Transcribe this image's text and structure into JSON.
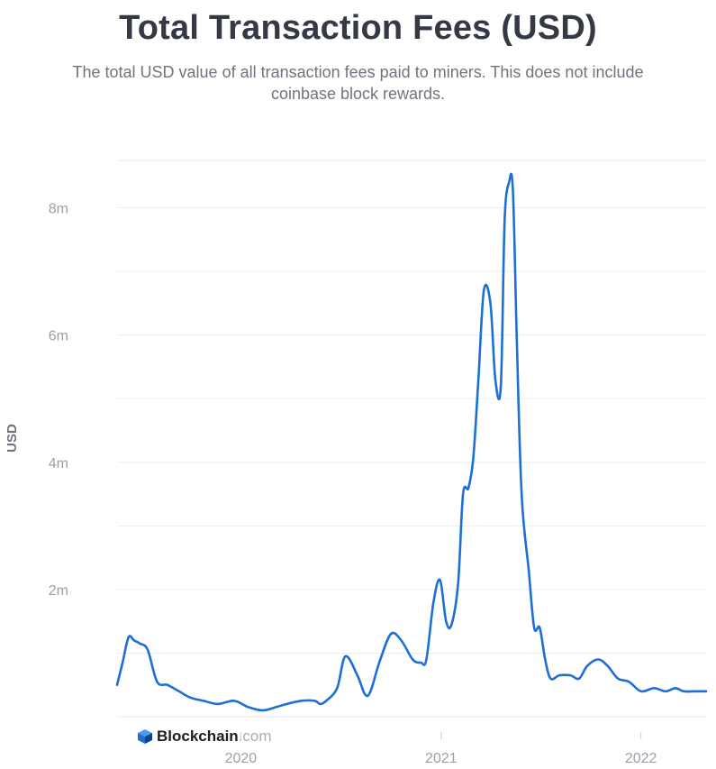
{
  "chart_data": {
    "type": "line",
    "title": "Total Transaction Fees (USD)",
    "subtitle": "The total USD value of all transaction fees paid to miners. This does not include coinbase block rewards.",
    "ylabel": "USD",
    "xlabel": "",
    "y_ticks": [
      {
        "value": 2000000,
        "label": "2m"
      },
      {
        "value": 4000000,
        "label": "4m"
      },
      {
        "value": 6000000,
        "label": "6m"
      },
      {
        "value": 8000000,
        "label": "8m"
      }
    ],
    "x_ticks": [
      {
        "value": "2020-01-01",
        "label": "2020"
      },
      {
        "value": "2021-01-01",
        "label": "2021"
      },
      {
        "value": "2022-01-01",
        "label": "2022"
      }
    ],
    "xlim": [
      "2019-05-20",
      "2022-04-30"
    ],
    "ylim": [
      0,
      9000000
    ],
    "grid": true,
    "legend": "none",
    "line_color": "#1e6fd4",
    "series": [
      {
        "x": [
          "2019-05-20",
          "2019-05-30",
          "2019-06-10",
          "2019-06-20",
          "2019-07-01",
          "2019-07-15",
          "2019-08-01",
          "2019-08-20",
          "2019-09-10",
          "2019-10-01",
          "2019-10-25",
          "2019-11-20",
          "2019-12-20",
          "2020-01-15",
          "2020-02-10",
          "2020-03-05",
          "2020-03-25",
          "2020-04-20",
          "2020-05-15",
          "2020-05-25",
          "2020-06-05",
          "2020-06-25",
          "2020-07-10",
          "2020-08-01",
          "2020-08-15",
          "2020-08-25",
          "2020-09-10",
          "2020-10-01",
          "2020-10-20",
          "2020-11-10",
          "2020-11-25",
          "2020-12-05",
          "2020-12-18",
          "2020-12-30",
          "2021-01-10",
          "2021-01-20",
          "2021-02-01",
          "2021-02-10",
          "2021-02-20",
          "2021-03-01",
          "2021-03-10",
          "2021-03-20",
          "2021-04-01",
          "2021-04-10",
          "2021-04-20",
          "2021-04-27",
          "2021-05-05",
          "2021-05-12",
          "2021-05-19",
          "2021-05-28",
          "2021-06-10",
          "2021-06-20",
          "2021-06-30",
          "2021-07-10",
          "2021-07-20",
          "2021-08-05",
          "2021-08-25",
          "2021-09-10",
          "2021-09-25",
          "2021-10-15",
          "2021-11-01",
          "2021-11-20",
          "2021-12-10",
          "2022-01-01",
          "2022-01-25",
          "2022-02-15",
          "2022-03-05",
          "2022-03-20",
          "2022-04-10",
          "2022-04-30"
        ],
        "y": [
          500000,
          850000,
          1250000,
          1200000,
          1150000,
          1050000,
          550000,
          500000,
          400000,
          300000,
          250000,
          200000,
          250000,
          150000,
          100000,
          150000,
          200000,
          250000,
          250000,
          200000,
          250000,
          450000,
          950000,
          650000,
          350000,
          400000,
          850000,
          1300000,
          1200000,
          900000,
          850000,
          900000,
          1800000,
          2150000,
          1500000,
          1450000,
          2100000,
          3500000,
          3600000,
          4100000,
          5300000,
          6700000,
          6500000,
          5300000,
          5200000,
          7800000,
          8400000,
          8300000,
          6000000,
          3500000,
          2300000,
          1400000,
          1400000,
          900000,
          600000,
          650000,
          650000,
          600000,
          800000,
          900000,
          800000,
          600000,
          550000,
          400000,
          450000,
          400000,
          450000,
          400000,
          400000,
          400000
        ]
      }
    ]
  },
  "branding": {
    "logo_icon": "blockchain-cube-icon",
    "logo_name": "Blockchain",
    "logo_domain": ".com"
  }
}
